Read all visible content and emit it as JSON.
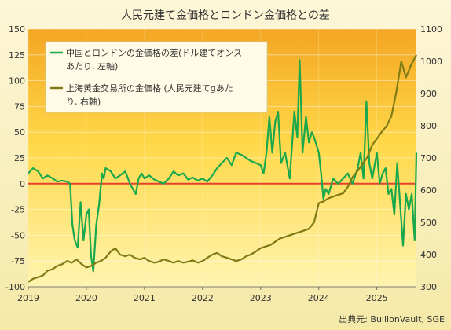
{
  "chart_data": {
    "type": "line",
    "title": "人民元建て金価格とロンドン金価格との差",
    "source": "出典元: BullionVault, SGE",
    "x_ticks": [
      "2019",
      "2020",
      "2021",
      "2022",
      "2023",
      "2024",
      "2025"
    ],
    "x_range": [
      2019.0,
      2025.68
    ],
    "left_axis": {
      "range": [
        -100,
        150
      ],
      "ticks": [
        -100,
        -75,
        -50,
        -25,
        0,
        25,
        50,
        75,
        100,
        125,
        150
      ]
    },
    "right_axis": {
      "range": [
        300,
        1100
      ],
      "ticks": [
        300,
        400,
        500,
        600,
        700,
        800,
        900,
        1000,
        1100
      ]
    },
    "zero_line_color": "#e8412c",
    "background_gradient": [
      "#f4a623",
      "#ffd94a",
      "#fff4b0"
    ],
    "legend": {
      "placement": "top-left"
    },
    "series": [
      {
        "name": "中国とロンドンの金価格の差(ドル建てオンスあたり, 左軸)",
        "name_lines": [
          "中国とロンドンの金価格の差(ドル建てオンス",
          "あたり, 左軸)"
        ],
        "axis": "left",
        "color": "#1aa84c",
        "x": [
          2019.0,
          2019.08,
          2019.17,
          2019.25,
          2019.33,
          2019.42,
          2019.5,
          2019.58,
          2019.67,
          2019.72,
          2019.76,
          2019.8,
          2019.85,
          2019.9,
          2019.95,
          2020.0,
          2020.04,
          2020.08,
          2020.12,
          2020.17,
          2020.22,
          2020.27,
          2020.3,
          2020.33,
          2020.42,
          2020.5,
          2020.58,
          2020.67,
          2020.75,
          2020.8,
          2020.85,
          2020.9,
          2020.95,
          2021.0,
          2021.08,
          2021.17,
          2021.25,
          2021.33,
          2021.42,
          2021.5,
          2021.58,
          2021.67,
          2021.75,
          2021.83,
          2021.92,
          2022.0,
          2022.08,
          2022.17,
          2022.25,
          2022.33,
          2022.42,
          2022.5,
          2022.58,
          2022.67,
          2022.75,
          2022.83,
          2022.92,
          2023.0,
          2023.05,
          2023.1,
          2023.15,
          2023.2,
          2023.25,
          2023.3,
          2023.35,
          2023.42,
          2023.5,
          2023.58,
          2023.63,
          2023.67,
          2023.72,
          2023.78,
          2023.83,
          2023.88,
          2023.92,
          2024.0,
          2024.04,
          2024.08,
          2024.12,
          2024.17,
          2024.25,
          2024.33,
          2024.42,
          2024.5,
          2024.58,
          2024.67,
          2024.72,
          2024.77,
          2024.82,
          2024.87,
          2024.92,
          2025.0,
          2025.05,
          2025.1,
          2025.15,
          2025.2,
          2025.25,
          2025.3,
          2025.35,
          2025.4,
          2025.45,
          2025.5,
          2025.55,
          2025.6,
          2025.65,
          2025.68
        ],
        "values": [
          10,
          15,
          12,
          5,
          8,
          5,
          2,
          3,
          2,
          0,
          -40,
          -55,
          -62,
          -18,
          -55,
          -30,
          -25,
          -70,
          -85,
          -40,
          -20,
          10,
          5,
          15,
          12,
          5,
          8,
          12,
          0,
          -5,
          -10,
          5,
          10,
          5,
          8,
          4,
          2,
          0,
          5,
          12,
          8,
          10,
          4,
          6,
          3,
          5,
          2,
          8,
          15,
          20,
          25,
          18,
          30,
          28,
          25,
          22,
          20,
          18,
          10,
          30,
          65,
          30,
          60,
          70,
          20,
          30,
          5,
          70,
          45,
          120,
          30,
          65,
          40,
          50,
          45,
          30,
          10,
          -15,
          -5,
          -10,
          5,
          0,
          5,
          10,
          0,
          15,
          30,
          5,
          80,
          20,
          5,
          30,
          0,
          10,
          15,
          -10,
          -5,
          -30,
          20,
          -20,
          -60,
          -10,
          -25,
          -10,
          -55,
          30
        ]
      },
      {
        "name": "上海黄金交易所の金価格(人民元建てgあたり, 右軸)",
        "name_lines": [
          "上海黄金交易所の金価格 (人民元建てgあた",
          "り, 右軸)"
        ],
        "axis": "right",
        "color": "#7f7a14",
        "x": [
          2019.0,
          2019.08,
          2019.17,
          2019.25,
          2019.33,
          2019.42,
          2019.5,
          2019.58,
          2019.67,
          2019.75,
          2019.83,
          2019.92,
          2020.0,
          2020.08,
          2020.17,
          2020.25,
          2020.33,
          2020.42,
          2020.5,
          2020.58,
          2020.67,
          2020.75,
          2020.83,
          2020.92,
          2021.0,
          2021.08,
          2021.17,
          2021.25,
          2021.33,
          2021.42,
          2021.5,
          2021.58,
          2021.67,
          2021.75,
          2021.83,
          2021.92,
          2022.0,
          2022.08,
          2022.17,
          2022.25,
          2022.33,
          2022.42,
          2022.5,
          2022.58,
          2022.67,
          2022.75,
          2022.83,
          2022.92,
          2023.0,
          2023.08,
          2023.17,
          2023.25,
          2023.33,
          2023.42,
          2023.5,
          2023.58,
          2023.67,
          2023.75,
          2023.83,
          2023.92,
          2024.0,
          2024.08,
          2024.17,
          2024.25,
          2024.33,
          2024.42,
          2024.5,
          2024.58,
          2024.67,
          2024.75,
          2024.83,
          2024.92,
          2025.0,
          2025.08,
          2025.17,
          2025.25,
          2025.33,
          2025.42,
          2025.5,
          2025.58,
          2025.65,
          2025.68
        ],
        "values": [
          315,
          325,
          330,
          335,
          350,
          355,
          365,
          370,
          380,
          375,
          385,
          370,
          360,
          365,
          375,
          380,
          390,
          410,
          420,
          400,
          395,
          400,
          390,
          385,
          390,
          380,
          375,
          378,
          385,
          380,
          375,
          380,
          375,
          378,
          382,
          375,
          380,
          390,
          400,
          405,
          395,
          390,
          385,
          380,
          385,
          395,
          400,
          410,
          420,
          425,
          430,
          440,
          450,
          455,
          460,
          465,
          470,
          475,
          480,
          500,
          560,
          565,
          575,
          580,
          585,
          590,
          610,
          640,
          660,
          680,
          700,
          740,
          760,
          780,
          800,
          830,
          900,
          1000,
          950,
          985,
          1010,
          1020
        ]
      }
    ]
  }
}
